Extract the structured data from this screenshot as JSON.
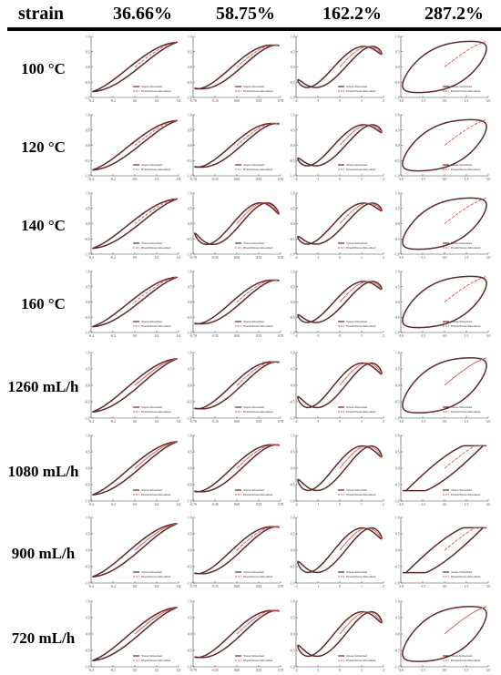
{
  "header": {
    "strain_label": "strain",
    "columns": [
      "36.66%",
      "58.75%",
      "162.2%",
      "287.2%"
    ]
  },
  "rows": [
    "100 °C",
    "120 °C",
    "140 °C",
    "160 °C",
    "1260 mL/h",
    "1080 mL/h",
    "900 mL/h",
    "720 mL/h"
  ],
  "colors": {
    "stress": "#5b2b2b",
    "elastic": "#e0504a",
    "axis": "#444444"
  },
  "chart_data": {
    "type": "line",
    "layout": "grid 8 rows x 4 columns of Lissajous-Bowditch plots",
    "ylim": [
      -1.0,
      1.0
    ],
    "y_ticks": [
      -1.0,
      -0.5,
      0.0,
      0.5,
      1.0
    ],
    "legend_position": "bottom-right",
    "legend": [
      "Stress-Smoothed",
      "ElasticStress-Smoothed"
    ],
    "columns": [
      {
        "strain": "36.66%",
        "xlim": [
          -0.4,
          0.4
        ],
        "x_ticks": [
          -0.4,
          -0.2,
          0.0,
          0.2,
          0.4
        ],
        "x_tick_labels": [
          "-0.4",
          "-0.2",
          "0.0",
          "0.2",
          "0.4"
        ]
      },
      {
        "strain": "58.75%",
        "xlim": [
          -0.7,
          0.7
        ],
        "x_ticks": [
          -0.7,
          -0.35,
          0.0,
          0.35,
          0.7
        ],
        "x_tick_labels": [
          "-0.70",
          "-0.35",
          "0.00",
          "0.35",
          "0.70"
        ]
      },
      {
        "strain": "162.2%",
        "xlim": [
          -2.0,
          2.0
        ],
        "x_ticks": [
          -2,
          -1,
          0,
          1,
          2
        ],
        "x_tick_labels": [
          "-2",
          "-1",
          "0",
          "1",
          "2"
        ]
      },
      {
        "strain": "287.2%",
        "xlim": [
          -3.0,
          3.0
        ],
        "x_ticks": [
          -3.0,
          -1.5,
          0.0,
          1.5,
          3.0
        ],
        "x_tick_labels": [
          "-3.0",
          "-1.5",
          "0.0",
          "1.5",
          "3.0"
        ]
      }
    ],
    "series": [
      {
        "name": "Stress-Smoothed",
        "style": "solid closed loop"
      },
      {
        "name": "ElasticStress-Smoothed",
        "style": "dashed"
      }
    ]
  }
}
